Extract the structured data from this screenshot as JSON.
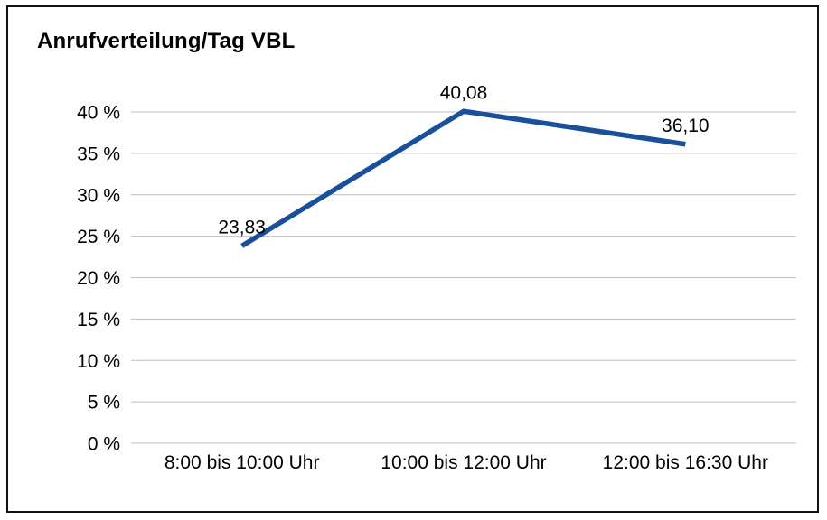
{
  "chart_data": {
    "type": "line",
    "title": "Anrufverteilung/Tag VBL",
    "categories": [
      "8:00 bis 10:00 Uhr",
      "10:00 bis 12:00 Uhr",
      "12:00 bis 16:30 Uhr"
    ],
    "values": [
      23.83,
      40.08,
      36.1
    ],
    "value_labels": [
      "23,83",
      "40,08",
      "36,10"
    ],
    "xlabel": "",
    "ylabel": "",
    "ylim": [
      0,
      40
    ],
    "ytick_step": 5,
    "ytick_labels": [
      "0 %",
      "5 %",
      "10 %",
      "15 %",
      "20 %",
      "25 %",
      "30 %",
      "35 %",
      "40 %"
    ],
    "grid": true,
    "legend": "none",
    "line_color": "#1a4f9c",
    "grid_color": "#bfbfbf",
    "text_color": "#000000"
  }
}
